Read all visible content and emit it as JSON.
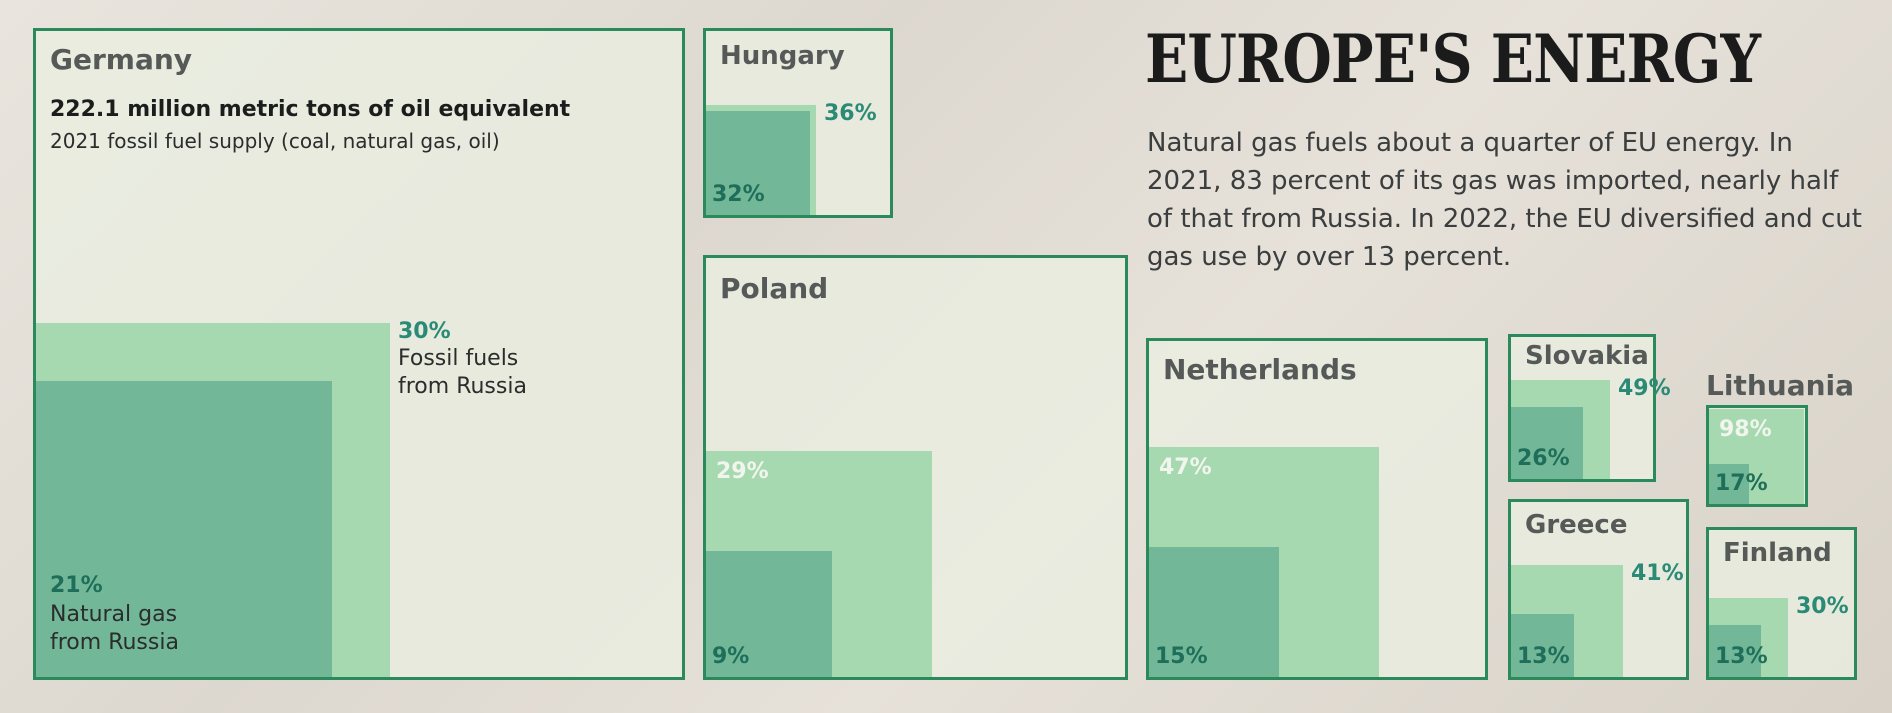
{
  "chart_data": {
    "type": "nested-square",
    "title": "EUROPE'S ENERGY",
    "subtitle": "Natural gas fuels about a quarter of EU energy. In 2021, 83 percent of its gas was imported, nearly half of that from Russia. In 2022, the EU diversified and cut gas use by over 13 percent.",
    "measure_title": "222.1 million metric tons of oil equivalent",
    "measure_note": "2021 fossil fuel supply (coal, natural gas, oil)",
    "series": [
      {
        "name": "Fossil fuels from Russia",
        "label": "Fossil fuels\nfrom Russia"
      },
      {
        "name": "Natural gas from Russia",
        "label": "Natural gas\nfrom Russia"
      }
    ],
    "countries": [
      {
        "name": "Germany",
        "fossil_pct": 30,
        "gas_pct": 21,
        "fossil_label": "30%",
        "gas_label": "21%"
      },
      {
        "name": "Hungary",
        "fossil_pct": 36,
        "gas_pct": 32,
        "fossil_label": "36%",
        "gas_label": "32%"
      },
      {
        "name": "Poland",
        "fossil_pct": 29,
        "gas_pct": 9,
        "fossil_label": "29%",
        "gas_label": "9%"
      },
      {
        "name": "Netherlands",
        "fossil_pct": 47,
        "gas_pct": 15,
        "fossil_label": "47%",
        "gas_label": "15%"
      },
      {
        "name": "Slovakia",
        "fossil_pct": 49,
        "gas_pct": 26,
        "fossil_label": "49%",
        "gas_label": "26%"
      },
      {
        "name": "Lithuania",
        "fossil_pct": 98,
        "gas_pct": 17,
        "fossil_label": "98%",
        "gas_label": "17%"
      },
      {
        "name": "Greece",
        "fossil_pct": 41,
        "gas_pct": 13,
        "fossil_label": "41%",
        "gas_label": "13%"
      },
      {
        "name": "Finland",
        "fossil_pct": 30,
        "gas_pct": 13,
        "fossil_label": "30%",
        "gas_label": "13%"
      }
    ],
    "colors": {
      "border": "#2a8a5c",
      "fossil": "#a6d9b0",
      "gas": "#72b898",
      "pct_text": "#2a8a75"
    }
  }
}
